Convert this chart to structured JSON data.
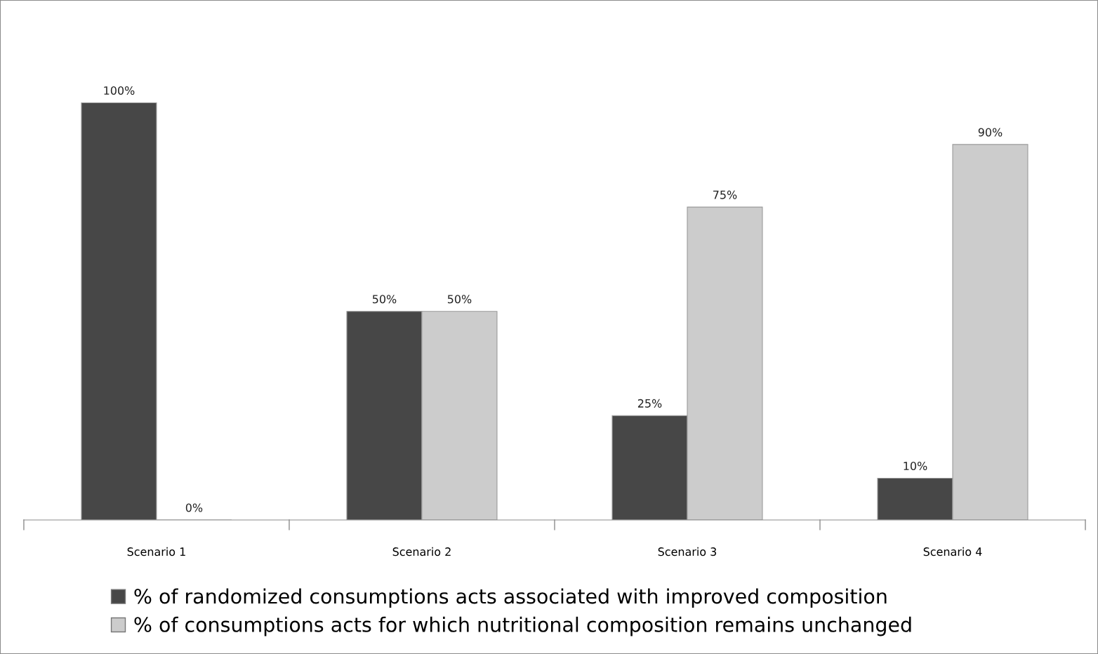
{
  "chart_data": {
    "type": "bar",
    "categories": [
      "Scenario 1",
      "Scenario 2",
      "Scenario 3",
      "Scenario 4"
    ],
    "series": [
      {
        "name": "% of randomized consumptions acts associated with improved composition",
        "color": "#474747",
        "values": [
          100,
          50,
          25,
          10
        ],
        "value_labels": [
          "100%",
          "50%",
          "25%",
          "10%"
        ]
      },
      {
        "name": "% of consumptions acts for which nutritional composition remains unchanged",
        "color": "#cccccc",
        "values": [
          0,
          50,
          75,
          90
        ],
        "value_labels": [
          "0%",
          "50%",
          "75%",
          "90%"
        ]
      }
    ],
    "legend": "bottom"
  }
}
